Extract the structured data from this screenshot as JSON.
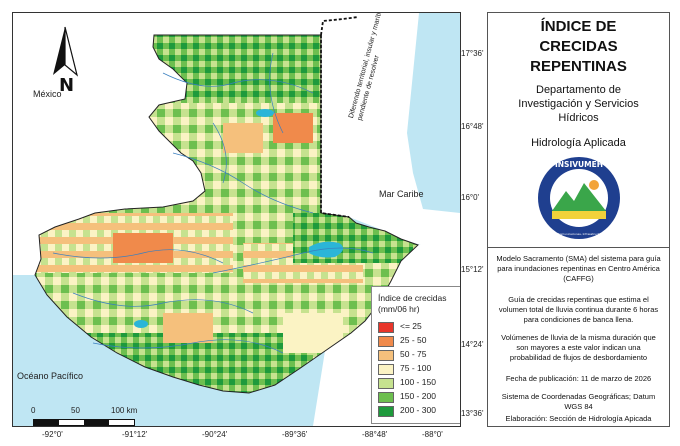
{
  "title": "ÍNDICE DE CRECIDAS REPENTINAS",
  "title_lines": [
    "ÍNDICE DE",
    "CRECIDAS",
    "REPENTINAS"
  ],
  "department_lines": [
    "Departamento de",
    "Investigación y Servicios",
    "Hídricos"
  ],
  "unit": "Hidrología Aplicada",
  "logo": {
    "top_text": "INSIVUMEH",
    "ring_text": "Ministerio de Comunicaciones, Infraestructura y Vivienda"
  },
  "description1": [
    "Modelo Sacramento (SMA) del sistema para guía",
    "para inundaciones repentinas en Centro América",
    "(CAFFG)"
  ],
  "description2": [
    "Guía de crecidas repentinas que estima el",
    "volumen total de lluvia continua durante 6 horas",
    "para condiciones de banca llena."
  ],
  "description3": [
    "Volúmenes de lluvia de la misma duración que",
    "son mayores a este valor indican una",
    "probabilidad de flujos de desbordamiento"
  ],
  "publication_date": "Fecha de publicación: 11 de marzo de 2026",
  "coordinate_system": [
    "Sistema de Coordenadas Geográficas; Datum",
    "WGS 84"
  ],
  "prepared_by": "Elaboración: Sección de Hidrología Apicada",
  "map_labels": {
    "mexico": "México",
    "caribbean": "Mar Caribe",
    "pacific": "Océano Pacífico",
    "belize_note": "Diferendo territorial, insular y marítimo pendiente de resolver"
  },
  "north_arrow": "N",
  "scale_bar": {
    "labels": [
      "0",
      "50",
      "100 km"
    ]
  },
  "legend": {
    "title_lines": [
      "Índice de crecidas",
      "(mm/06 hr)"
    ],
    "classes": [
      {
        "label": "<= 25",
        "color": "#e8352a"
      },
      {
        "label": "25 - 50",
        "color": "#f08a4b"
      },
      {
        "label": "50 - 75",
        "color": "#f5c07c"
      },
      {
        "label": "75 - 100",
        "color": "#fbf3c4"
      },
      {
        "label": "100 - 150",
        "color": "#c6e28f"
      },
      {
        "label": "150 - 200",
        "color": "#6dbf4f"
      },
      {
        "label": "200 - 300",
        "color": "#1e9a3c"
      }
    ]
  },
  "longitude_ticks": [
    "-92°0'",
    "-91°12'",
    "-90°24'",
    "-89°36'",
    "-88°48'",
    "-88°0'"
  ],
  "latitude_ticks": [
    "17°36'",
    "16°48'",
    "16°0'",
    "15°12'",
    "14°24'",
    "13°36'"
  ],
  "colors": {
    "sea": "#bfe6f3",
    "neighbor_land": "#ffffff",
    "lake": "#2bb5d8",
    "rivers": "#3a7fbf",
    "boundary": "#222222"
  }
}
